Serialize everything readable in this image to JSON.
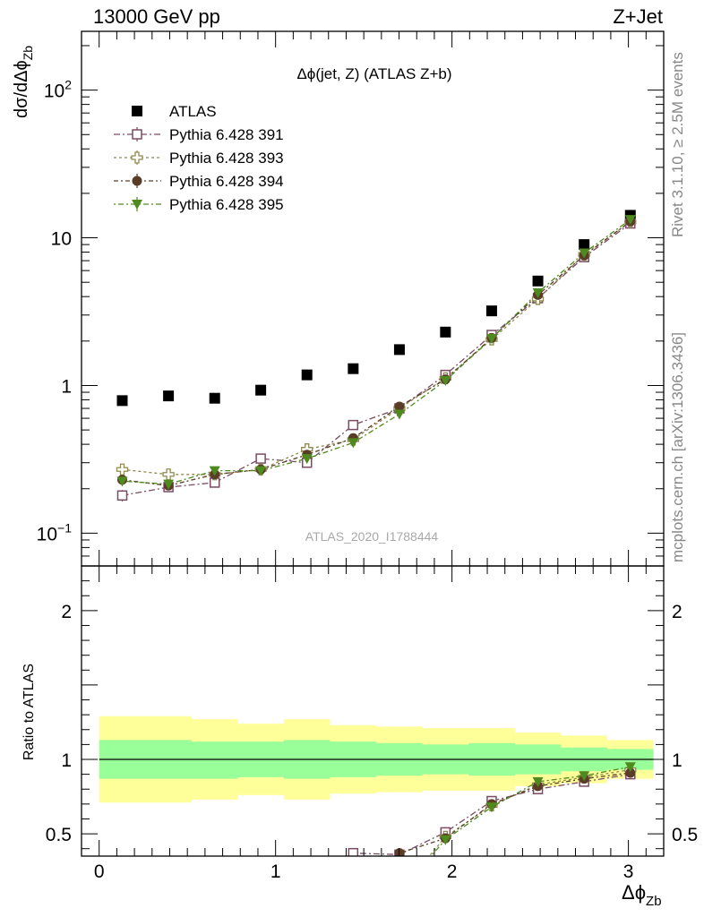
{
  "header": {
    "left": "13000 GeV pp",
    "right": "Z+Jet"
  },
  "side_labels": {
    "rivet": "Rivet 3.1.10, ≥ 2.5M events",
    "mcplots": "mcplots.cern.ch [arXiv:1306.3436]"
  },
  "colors": {
    "data": "#000000",
    "band_stat": "#99ff99",
    "band_total": "#ffff99",
    "p391": "#7a4b63",
    "p393": "#8f8a52",
    "p394": "#5a3d26",
    "p395": "#4f8a1e"
  },
  "chart_data": [
    {
      "type": "scatter",
      "panel": "main",
      "title": "Δϕ(jet, Z) (ATLAS Z+b)",
      "watermark": "ATLAS_2020_I1788444",
      "ylabel": "dσ/dΔϕ_Zb",
      "yscale": "log",
      "xlim": [
        -0.1,
        3.2
      ],
      "ylim": [
        0.06,
        250
      ],
      "ytick_labels": [
        "10^−1",
        "1",
        "10",
        "10^2"
      ],
      "legend_position": "top-left",
      "x": [
        0.131,
        0.393,
        0.655,
        0.916,
        1.178,
        1.44,
        1.702,
        1.963,
        2.225,
        2.487,
        2.749,
        3.011
      ],
      "series": [
        {
          "name": "ATLAS",
          "marker": "filled-square",
          "color_key": "data",
          "values": [
            0.79,
            0.85,
            0.82,
            0.93,
            1.18,
            1.3,
            1.75,
            2.3,
            3.2,
            5.1,
            9.0,
            14.2
          ]
        },
        {
          "name": "Pythia 6.428 391",
          "marker": "open-square",
          "color_key": "p391",
          "values": [
            0.18,
            0.205,
            0.22,
            0.32,
            0.3,
            0.54,
            0.7,
            1.18,
            2.2,
            3.9,
            7.4,
            12.5
          ],
          "errors": [
            0.016,
            0.014,
            0.015,
            0.018,
            0.02,
            0.03,
            0.03,
            0.04,
            0.06,
            0.09,
            0.15,
            0.25
          ]
        },
        {
          "name": "Pythia 6.428 393",
          "marker": "open-cross",
          "color_key": "p393",
          "values": [
            0.27,
            0.25,
            0.25,
            0.27,
            0.37,
            0.43,
            0.7,
            1.12,
            2.05,
            3.85,
            7.7,
            12.8
          ],
          "errors": [
            0.017,
            0.015,
            0.016,
            0.017,
            0.02,
            0.025,
            0.03,
            0.04,
            0.06,
            0.09,
            0.15,
            0.25
          ]
        },
        {
          "name": "Pythia 6.428 394",
          "marker": "filled-circle",
          "color_key": "p394",
          "values": [
            0.23,
            0.21,
            0.25,
            0.27,
            0.34,
            0.44,
            0.72,
            1.1,
            2.1,
            4.1,
            7.6,
            12.9
          ],
          "errors": [
            0.016,
            0.014,
            0.015,
            0.016,
            0.02,
            0.025,
            0.03,
            0.04,
            0.06,
            0.09,
            0.15,
            0.25
          ]
        },
        {
          "name": "Pythia 6.428 395",
          "marker": "filled-triangle-down",
          "color_key": "p395",
          "values": [
            0.225,
            0.215,
            0.265,
            0.265,
            0.32,
            0.41,
            0.64,
            1.08,
            2.08,
            4.25,
            7.9,
            13.3
          ],
          "errors": [
            0.016,
            0.014,
            0.015,
            0.016,
            0.02,
            0.025,
            0.03,
            0.04,
            0.06,
            0.09,
            0.15,
            0.25
          ]
        }
      ]
    },
    {
      "type": "scatter",
      "panel": "ratio",
      "ylabel": "Ratio to ATLAS",
      "xlabel": "Δϕ_Zb",
      "xlim": [
        -0.1,
        3.2
      ],
      "ylim": [
        0.35,
        2.3
      ],
      "ytick_labels": [
        "0.5",
        "1",
        "2"
      ],
      "xtick_labels": [
        "0",
        "1",
        "2",
        "3"
      ],
      "reference_line": 1,
      "bin_edges": [
        0.0,
        0.262,
        0.524,
        0.785,
        1.047,
        1.309,
        1.571,
        1.833,
        2.094,
        2.356,
        2.618,
        2.88,
        3.142
      ],
      "band_stat_lo": [
        0.87,
        0.87,
        0.87,
        0.88,
        0.87,
        0.88,
        0.89,
        0.9,
        0.89,
        0.9,
        0.92,
        0.93
      ],
      "band_stat_hi": [
        1.13,
        1.13,
        1.12,
        1.12,
        1.13,
        1.12,
        1.11,
        1.1,
        1.11,
        1.1,
        1.08,
        1.07
      ],
      "band_total_lo": [
        0.71,
        0.71,
        0.73,
        0.76,
        0.73,
        0.77,
        0.78,
        0.79,
        0.79,
        0.82,
        0.84,
        0.87
      ],
      "band_total_hi": [
        1.29,
        1.29,
        1.27,
        1.24,
        1.27,
        1.23,
        1.22,
        1.21,
        1.21,
        1.18,
        1.16,
        1.13
      ],
      "x": [
        0.131,
        0.393,
        0.655,
        0.916,
        1.178,
        1.44,
        1.702,
        1.963,
        2.225,
        2.487,
        2.749,
        3.011
      ],
      "series": [
        {
          "name": "Pythia 6.428 391",
          "marker": "open-square",
          "color_key": "p391",
          "values": [
            null,
            null,
            null,
            null,
            null,
            0.37,
            0.36,
            0.51,
            0.72,
            0.8,
            0.85,
            0.9
          ],
          "errors": [
            null,
            null,
            null,
            null,
            null,
            0.02,
            0.015,
            0.02,
            0.02,
            0.02,
            0.02,
            0.02
          ]
        },
        {
          "name": "Pythia 6.428 393",
          "marker": "open-cross",
          "color_key": "p393",
          "values": [
            null,
            null,
            null,
            null,
            null,
            null,
            null,
            0.48,
            0.69,
            0.83,
            0.88,
            0.93
          ],
          "errors": [
            null,
            null,
            null,
            null,
            null,
            null,
            null,
            0.02,
            0.02,
            0.02,
            0.02,
            0.02
          ]
        },
        {
          "name": "Pythia 6.428 394",
          "marker": "filled-circle",
          "color_key": "p394",
          "values": [
            null,
            null,
            null,
            null,
            null,
            null,
            0.37,
            0.47,
            0.7,
            0.82,
            0.87,
            0.91
          ],
          "errors": [
            null,
            null,
            null,
            null,
            null,
            null,
            0.015,
            0.02,
            0.02,
            0.02,
            0.02,
            0.02
          ]
        },
        {
          "name": "Pythia 6.428 395",
          "marker": "filled-triangle-down",
          "color_key": "p395",
          "values": [
            null,
            null,
            null,
            null,
            null,
            null,
            null,
            0.46,
            0.68,
            0.85,
            0.89,
            0.95
          ],
          "errors": [
            null,
            null,
            null,
            null,
            null,
            null,
            null,
            0.02,
            0.02,
            0.02,
            0.02,
            0.02
          ]
        }
      ]
    }
  ]
}
